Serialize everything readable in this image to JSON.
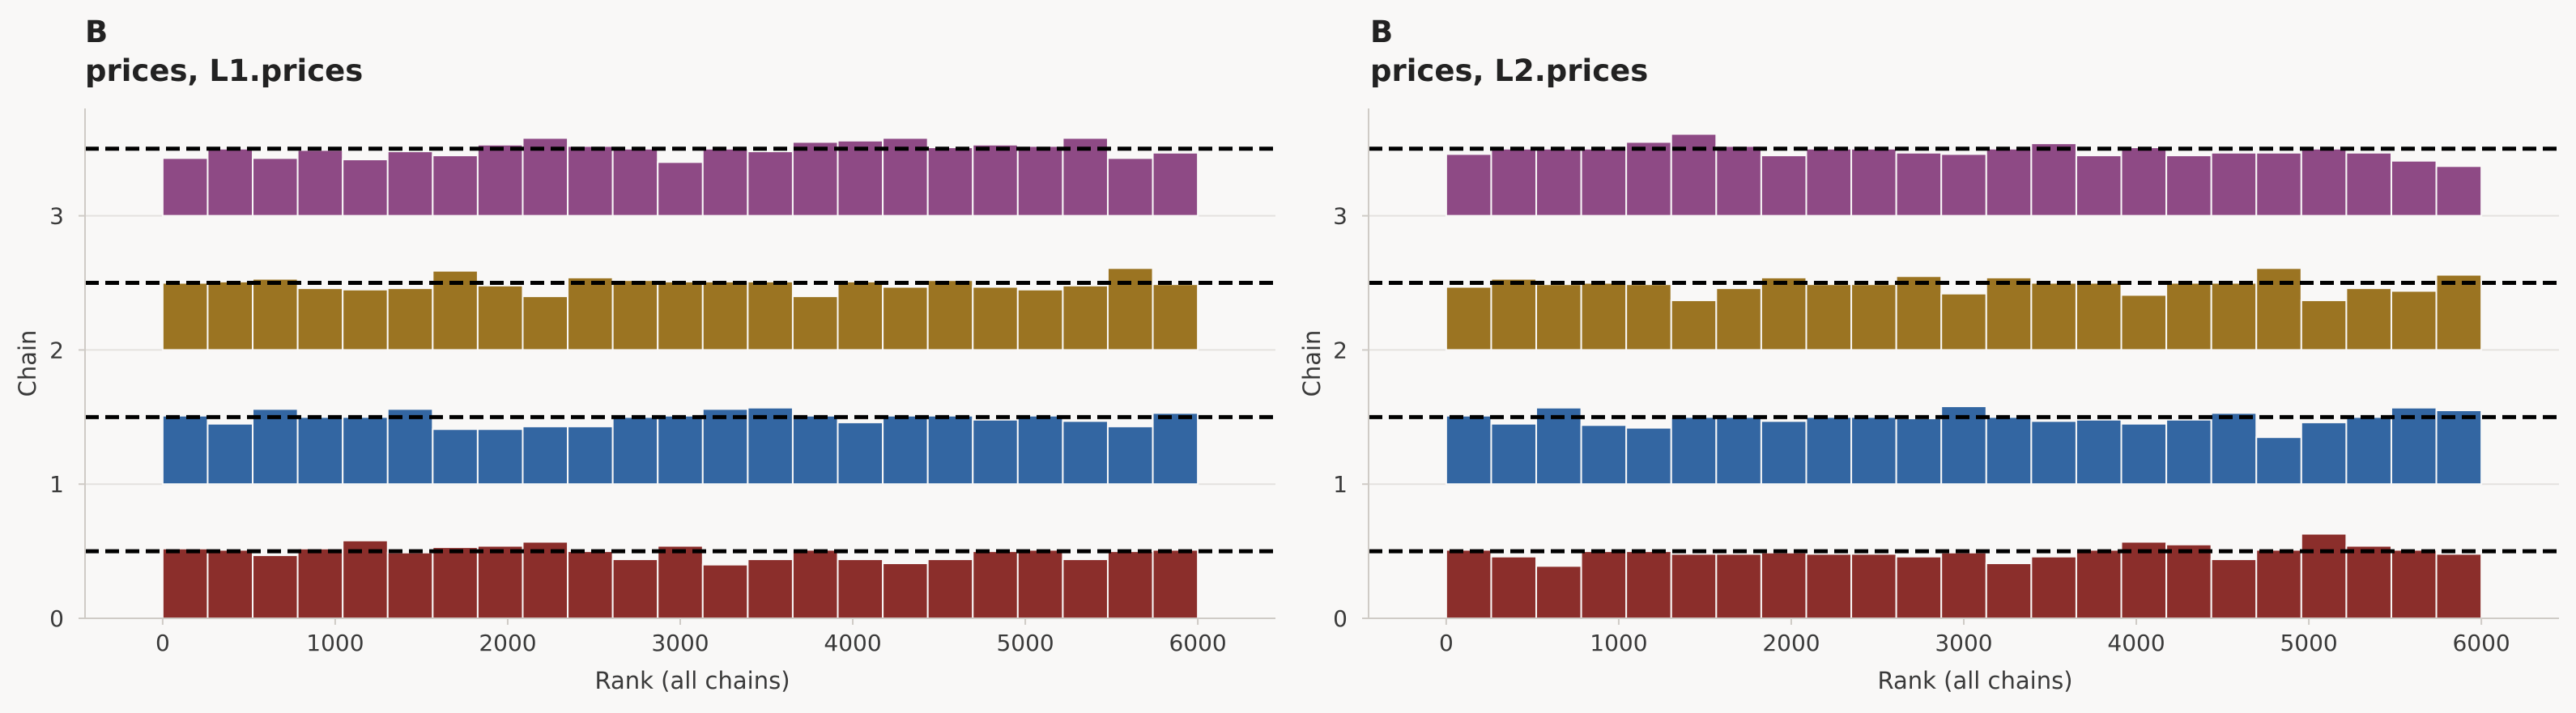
{
  "chart_data": [
    {
      "type": "bar",
      "panel_label": "B",
      "title": "prices, L1.prices",
      "xlabel": "Rank (all chains)",
      "ylabel": "Chain",
      "xlim": [
        -450,
        6450
      ],
      "ylim": [
        0,
        3.8
      ],
      "xticks": [
        "0",
        "1000",
        "2000",
        "3000",
        "4000",
        "5000",
        "6000"
      ],
      "yticks": [
        "0",
        "1",
        "2",
        "3"
      ],
      "bin_width": 260.87,
      "reference_offset": 0.5,
      "series": [
        {
          "chain": 0,
          "color": "#8b2e2b",
          "values": [
            0.52,
            0.51,
            0.47,
            0.52,
            0.58,
            0.49,
            0.53,
            0.54,
            0.57,
            0.5,
            0.44,
            0.54,
            0.4,
            0.44,
            0.51,
            0.44,
            0.41,
            0.44,
            0.5,
            0.51,
            0.44,
            0.5,
            0.51
          ]
        },
        {
          "chain": 1,
          "color": "#3366a2",
          "values": [
            0.51,
            0.45,
            0.56,
            0.5,
            0.5,
            0.56,
            0.41,
            0.41,
            0.43,
            0.43,
            0.5,
            0.51,
            0.56,
            0.57,
            0.51,
            0.46,
            0.51,
            0.51,
            0.48,
            0.51,
            0.47,
            0.43,
            0.53
          ]
        },
        {
          "chain": 2,
          "color": "#9b7422",
          "values": [
            0.5,
            0.51,
            0.53,
            0.46,
            0.45,
            0.46,
            0.59,
            0.48,
            0.4,
            0.54,
            0.52,
            0.51,
            0.51,
            0.51,
            0.4,
            0.51,
            0.47,
            0.52,
            0.47,
            0.45,
            0.48,
            0.61,
            0.49
          ]
        },
        {
          "chain": 3,
          "color": "#8e4a85",
          "values": [
            0.43,
            0.5,
            0.43,
            0.49,
            0.42,
            0.48,
            0.45,
            0.53,
            0.58,
            0.52,
            0.5,
            0.4,
            0.5,
            0.48,
            0.55,
            0.56,
            0.58,
            0.51,
            0.53,
            0.52,
            0.58,
            0.43,
            0.47
          ]
        }
      ]
    },
    {
      "type": "bar",
      "panel_label": "B",
      "title": "prices, L2.prices",
      "xlabel": "Rank (all chains)",
      "ylabel": "Chain",
      "xlim": [
        -450,
        6450
      ],
      "ylim": [
        0,
        3.8
      ],
      "xticks": [
        "0",
        "1000",
        "2000",
        "3000",
        "4000",
        "5000",
        "6000"
      ],
      "yticks": [
        "0",
        "1",
        "2",
        "3"
      ],
      "bin_width": 260.87,
      "reference_offset": 0.5,
      "series": [
        {
          "chain": 0,
          "color": "#8b2e2b",
          "values": [
            0.51,
            0.46,
            0.39,
            0.5,
            0.5,
            0.48,
            0.48,
            0.49,
            0.48,
            0.48,
            0.46,
            0.49,
            0.41,
            0.46,
            0.51,
            0.57,
            0.55,
            0.44,
            0.51,
            0.63,
            0.54,
            0.51,
            0.48
          ]
        },
        {
          "chain": 1,
          "color": "#3366a2",
          "values": [
            0.51,
            0.45,
            0.57,
            0.44,
            0.42,
            0.5,
            0.5,
            0.47,
            0.5,
            0.5,
            0.49,
            0.58,
            0.5,
            0.47,
            0.48,
            0.45,
            0.48,
            0.53,
            0.35,
            0.46,
            0.5,
            0.57,
            0.55
          ]
        },
        {
          "chain": 2,
          "color": "#9b7422",
          "values": [
            0.47,
            0.53,
            0.49,
            0.5,
            0.49,
            0.37,
            0.46,
            0.54,
            0.49,
            0.49,
            0.55,
            0.42,
            0.54,
            0.5,
            0.5,
            0.41,
            0.5,
            0.5,
            0.61,
            0.37,
            0.46,
            0.44,
            0.56
          ]
        },
        {
          "chain": 3,
          "color": "#8e4a85",
          "values": [
            0.46,
            0.5,
            0.5,
            0.5,
            0.55,
            0.61,
            0.52,
            0.45,
            0.5,
            0.5,
            0.47,
            0.46,
            0.5,
            0.54,
            0.45,
            0.51,
            0.45,
            0.47,
            0.47,
            0.5,
            0.47,
            0.41,
            0.37
          ]
        }
      ]
    }
  ]
}
